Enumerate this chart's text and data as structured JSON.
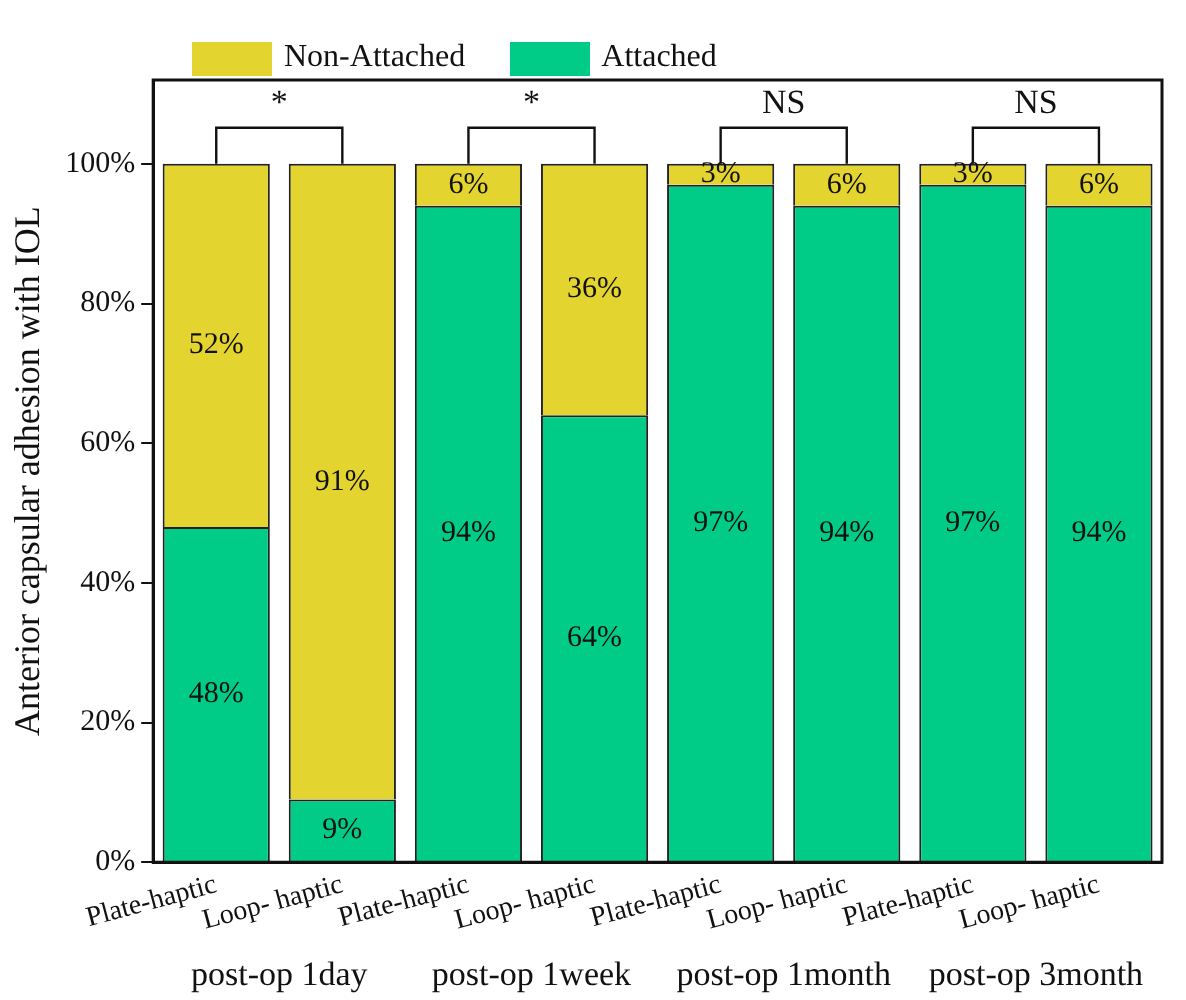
{
  "chart_data": {
    "type": "bar",
    "stacked": true,
    "ylabel": "Anterior capsular adhesion with IOL",
    "categories": [
      "Plate-haptic",
      "Loop- haptic",
      "Plate-haptic",
      "Loop- haptic",
      "Plate-haptic",
      "Loop- haptic",
      "Plate-haptic",
      "Loop- haptic"
    ],
    "series": [
      {
        "name": "Attached",
        "color": "#00cc88",
        "values": [
          48,
          9,
          94,
          64,
          97,
          94,
          97,
          94
        ],
        "value_labels": [
          "48%",
          "9%",
          "94%",
          "64%",
          "97%",
          "94%",
          "97%",
          "94%"
        ]
      },
      {
        "name": "Non-Attached",
        "color": "#e3d430",
        "values": [
          52,
          91,
          6,
          36,
          3,
          6,
          3,
          6
        ],
        "value_labels": [
          "52%",
          "91%",
          "6%",
          "36%",
          "3%",
          "6%",
          "3%",
          "6%"
        ]
      }
    ],
    "ylim": [
      0,
      112
    ],
    "yticks": [
      {
        "value": 0,
        "label": "0%"
      },
      {
        "value": 20,
        "label": "20%"
      },
      {
        "value": 40,
        "label": "40%"
      },
      {
        "value": 60,
        "label": "60%"
      },
      {
        "value": 80,
        "label": "80%"
      },
      {
        "value": 100,
        "label": "100%"
      }
    ],
    "grid": false,
    "legend": "top left",
    "annotations": [
      "*",
      "*",
      "NS",
      "NS",
      "post-op 1day",
      "post-op 1week",
      "post-op 1month",
      "post-op 3month"
    ]
  }
}
